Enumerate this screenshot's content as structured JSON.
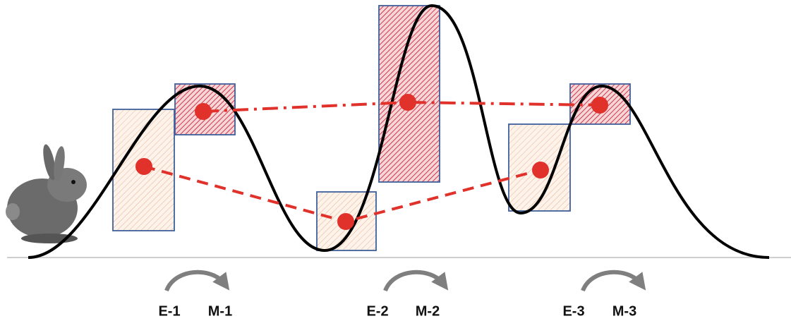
{
  "stages": [
    {
      "early": "E-1",
      "mature": "M-1"
    },
    {
      "early": "E-2",
      "mature": "M-2"
    },
    {
      "early": "E-3",
      "mature": "M-3"
    }
  ]
}
